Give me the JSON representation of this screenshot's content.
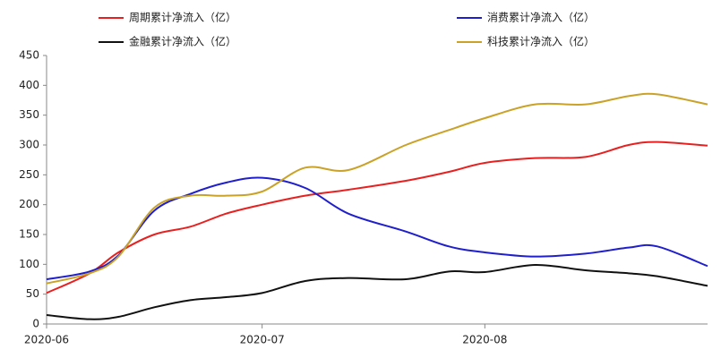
{
  "chart_data": {
    "type": "line",
    "x": [
      0,
      6,
      10,
      15,
      20,
      25,
      30,
      36,
      42,
      50,
      56,
      61,
      68,
      75,
      81,
      85,
      92
    ],
    "xlim": [
      0,
      92
    ],
    "xticks": [
      {
        "value": 0,
        "label": "2020-06"
      },
      {
        "value": 30,
        "label": "2020-07"
      },
      {
        "value": 61,
        "label": "2020-08"
      }
    ],
    "ylim": [
      0,
      450
    ],
    "yticks": [
      0,
      50,
      100,
      150,
      200,
      250,
      300,
      350,
      400,
      450
    ],
    "grid": false,
    "legend": "top",
    "series": [
      {
        "name": "周期累计净流入（亿）",
        "color": "#e8201f",
        "values": [
          52,
          85,
          120,
          150,
          163,
          185,
          200,
          215,
          225,
          240,
          255,
          270,
          278,
          280,
          300,
          305,
          299
        ]
      },
      {
        "name": "消费累计净流入（亿）",
        "color": "#1f1fcc",
        "values": [
          75,
          88,
          115,
          190,
          218,
          237,
          245,
          228,
          185,
          155,
          130,
          120,
          113,
          118,
          128,
          130,
          97
        ]
      },
      {
        "name": "金融累计净流入（亿）",
        "color": "#111111",
        "values": [
          15,
          8,
          12,
          28,
          40,
          45,
          52,
          72,
          77,
          75,
          88,
          87,
          99,
          90,
          85,
          80,
          64
        ]
      },
      {
        "name": "科技累计净流入（亿）",
        "color": "#c9a227",
        "values": [
          68,
          85,
          113,
          195,
          215,
          215,
          222,
          262,
          258,
          300,
          325,
          345,
          368,
          368,
          382,
          385,
          368
        ]
      }
    ]
  }
}
